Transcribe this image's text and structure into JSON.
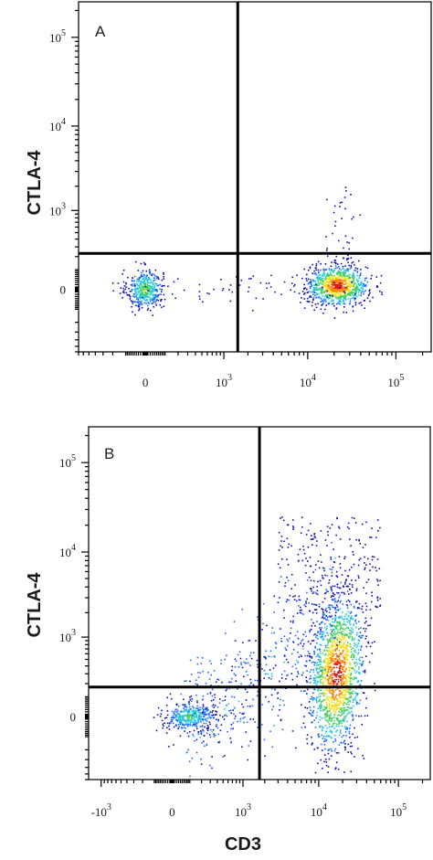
{
  "chart_data": [
    {
      "type": "scatter",
      "panel_label": "A",
      "xlabel": "",
      "ylabel": "CTLA-4",
      "x_scale": "biexponential",
      "y_scale": "biexponential",
      "xlim": [
        -700,
        250000
      ],
      "ylim": [
        -600,
        250000
      ],
      "x_ticks": [
        {
          "value": 0,
          "label": "0"
        },
        {
          "value": 1000,
          "label": "10",
          "exp": "3"
        },
        {
          "value": 10000,
          "label": "10",
          "exp": "4"
        },
        {
          "value": 100000,
          "label": "10",
          "exp": "5"
        }
      ],
      "y_ticks": [
        {
          "value": 0,
          "label": "0"
        },
        {
          "value": 1000,
          "label": "10",
          "exp": "3"
        },
        {
          "value": 10000,
          "label": "10",
          "exp": "4"
        },
        {
          "value": 100000,
          "label": "10",
          "exp": "5"
        }
      ],
      "quadrant_gate": {
        "x": 1500,
        "y": 230
      },
      "populations": [
        {
          "x_center": 0,
          "y_center": 0,
          "relative_density": 0.6
        },
        {
          "x_center": 22000,
          "y_center": 15,
          "relative_density": 1.0
        }
      ],
      "colors": [
        "#1010b0",
        "#1e6cff",
        "#20c8e0",
        "#40d060",
        "#f0e020",
        "#ff8000",
        "#e01010"
      ],
      "grid": false
    },
    {
      "type": "scatter",
      "panel_label": "B",
      "xlabel": "CD3",
      "ylabel": "CTLA-4",
      "x_scale": "biexponential",
      "y_scale": "biexponential",
      "xlim": [
        -1500,
        250000
      ],
      "ylim": [
        -600,
        250000
      ],
      "x_ticks": [
        {
          "value": -1000,
          "label": "-10",
          "exp": "3"
        },
        {
          "value": 0,
          "label": "0"
        },
        {
          "value": 1000,
          "label": "10",
          "exp": "3"
        },
        {
          "value": 10000,
          "label": "10",
          "exp": "4"
        },
        {
          "value": 100000,
          "label": "10",
          "exp": "5"
        }
      ],
      "y_ticks": [
        {
          "value": 0,
          "label": "0"
        },
        {
          "value": 1000,
          "label": "10",
          "exp": "3"
        },
        {
          "value": 10000,
          "label": "10",
          "exp": "4"
        },
        {
          "value": 100000,
          "label": "10",
          "exp": "5"
        }
      ],
      "quadrant_gate": {
        "x": 1700,
        "y": 170
      },
      "populations": [
        {
          "x_center": 100,
          "y_center": 0,
          "relative_density": 0.5
        },
        {
          "x_center": 17000,
          "y_center": 300,
          "relative_density": 1.0
        }
      ],
      "colors": [
        "#1010b0",
        "#1e6cff",
        "#20c8e0",
        "#40d060",
        "#f0e020",
        "#ff8000",
        "#e01010"
      ],
      "grid": false
    }
  ]
}
